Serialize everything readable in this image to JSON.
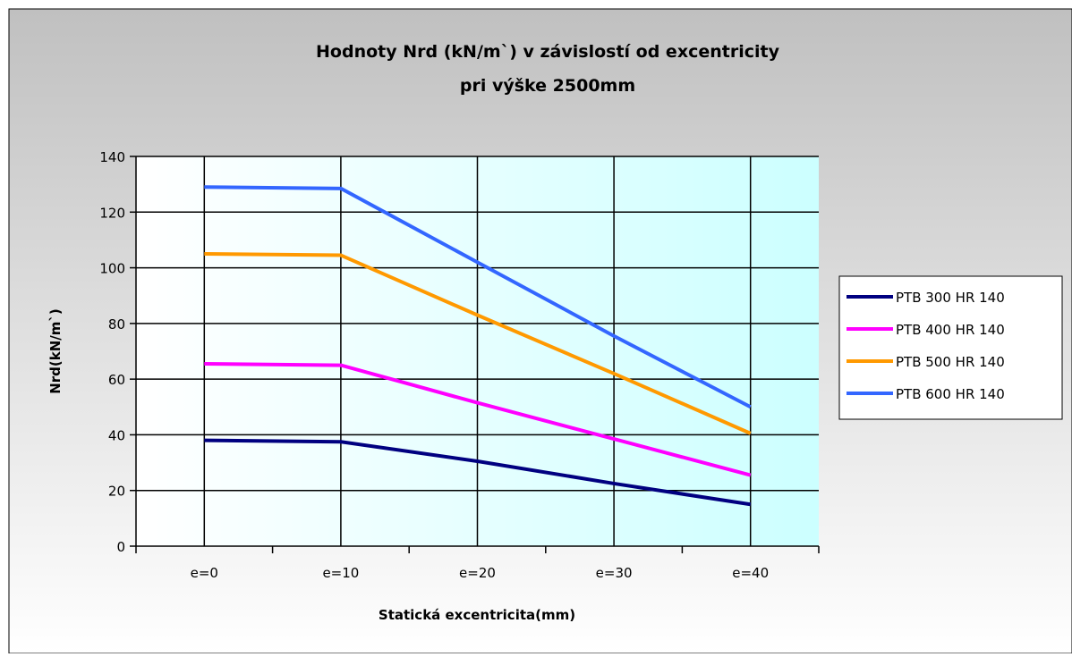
{
  "chart_data": {
    "type": "line",
    "title": "Hodnoty Nrd (kN/m`) v závislostí od excentricity",
    "subtitle": "pri výške 2500mm",
    "xlabel": "Statická excentricita(mm)",
    "ylabel": "Nrd(kN/m`)",
    "categories": [
      "e=0",
      "e=10",
      "e=20",
      "e=30",
      "e=40"
    ],
    "ylim": [
      0,
      140
    ],
    "yticks": [
      0,
      20,
      40,
      60,
      80,
      100,
      120,
      140
    ],
    "grid": true,
    "legend_position": "right",
    "series": [
      {
        "name": "PTB 300 HR 140",
        "color": "#000080",
        "values": [
          38,
          37.5,
          30.5,
          22.5,
          15
        ]
      },
      {
        "name": "PTB 400 HR 140",
        "color": "#ff00ff",
        "values": [
          65.5,
          65,
          51.5,
          38.5,
          25.5
        ]
      },
      {
        "name": "PTB 500 HR 140",
        "color": "#ff9900",
        "values": [
          105,
          104.5,
          83,
          62,
          40.5
        ]
      },
      {
        "name": "PTB 600 HR 140",
        "color": "#3366ff",
        "values": [
          129,
          128.5,
          102,
          75.5,
          50
        ]
      }
    ]
  }
}
